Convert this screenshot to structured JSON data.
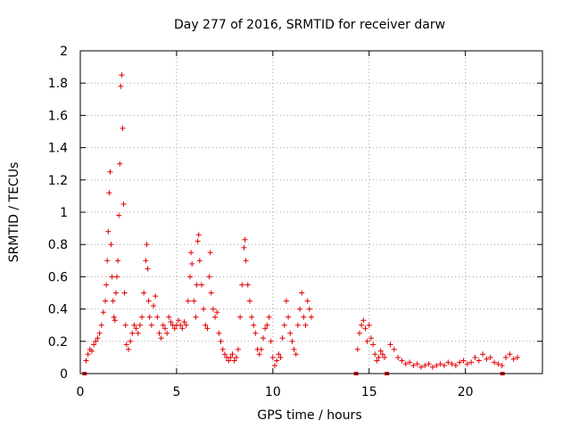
{
  "chart_data": {
    "type": "scatter",
    "title": "Day 277 of 2016, SRMTID for receiver darw",
    "xlabel": "GPS time / hours",
    "ylabel": "SRMTID / TECUs",
    "xlim": [
      0,
      24
    ],
    "ylim": [
      0,
      2
    ],
    "xticks": [
      0,
      5,
      10,
      15,
      20
    ],
    "xtick_labels": [
      "0",
      "5",
      "10",
      "15",
      "20"
    ],
    "yticks": [
      0,
      0.2,
      0.4,
      0.6,
      0.8,
      1,
      1.2,
      1.4,
      1.6,
      1.8,
      2
    ],
    "ytick_labels": [
      "0",
      "0.2",
      "0.4",
      "0.6",
      "0.8",
      "1",
      "1.2",
      "1.4",
      "1.6",
      "1.8",
      "2"
    ],
    "grid": true,
    "marker": "+",
    "color": "#e00000",
    "data_gaps": [
      0.2,
      14.3,
      15.9,
      21.9
    ],
    "series": [
      {
        "name": "SRMTID",
        "x": [
          0.3,
          0.4,
          0.5,
          0.6,
          0.7,
          0.8,
          0.9,
          1.0,
          1.1,
          1.2,
          1.3,
          1.35,
          1.4,
          1.45,
          1.5,
          1.55,
          1.6,
          1.65,
          1.7,
          1.75,
          1.8,
          1.85,
          1.9,
          1.95,
          2.0,
          2.05,
          2.1,
          2.15,
          2.2,
          2.25,
          2.3,
          2.35,
          2.4,
          2.5,
          2.6,
          2.7,
          2.8,
          2.9,
          3.0,
          3.1,
          3.2,
          3.3,
          3.4,
          3.45,
          3.5,
          3.55,
          3.6,
          3.7,
          3.8,
          3.9,
          4.0,
          4.1,
          4.2,
          4.3,
          4.4,
          4.5,
          4.6,
          4.7,
          4.8,
          4.9,
          5.0,
          5.1,
          5.2,
          5.3,
          5.4,
          5.5,
          5.6,
          5.7,
          5.75,
          5.8,
          5.9,
          6.0,
          6.05,
          6.1,
          6.15,
          6.2,
          6.3,
          6.4,
          6.5,
          6.6,
          6.7,
          6.75,
          6.8,
          6.9,
          7.0,
          7.1,
          7.2,
          7.3,
          7.4,
          7.5,
          7.6,
          7.7,
          7.8,
          7.9,
          8.0,
          8.1,
          8.2,
          8.3,
          8.4,
          8.5,
          8.55,
          8.6,
          8.7,
          8.8,
          8.9,
          9.0,
          9.1,
          9.2,
          9.3,
          9.4,
          9.5,
          9.6,
          9.7,
          9.8,
          9.9,
          10.0,
          10.1,
          10.2,
          10.3,
          10.4,
          10.5,
          10.6,
          10.7,
          10.8,
          10.9,
          11.0,
          11.1,
          11.2,
          11.3,
          11.4,
          11.5,
          11.6,
          11.7,
          11.8,
          11.9,
          12.0,
          14.4,
          14.5,
          14.6,
          14.7,
          14.8,
          14.9,
          15.0,
          15.1,
          15.2,
          15.3,
          15.4,
          15.5,
          15.6,
          15.7,
          15.8,
          16.1,
          16.3,
          16.5,
          16.7,
          16.9,
          17.1,
          17.3,
          17.5,
          17.7,
          17.9,
          18.1,
          18.3,
          18.5,
          18.7,
          18.9,
          19.1,
          19.3,
          19.5,
          19.7,
          19.9,
          20.1,
          20.3,
          20.5,
          20.7,
          20.9,
          21.1,
          21.3,
          21.5,
          21.7,
          21.9,
          22.1,
          22.3,
          22.5,
          22.7
        ],
        "y": [
          0.08,
          0.12,
          0.15,
          0.14,
          0.18,
          0.2,
          0.22,
          0.25,
          0.3,
          0.38,
          0.45,
          0.55,
          0.7,
          0.88,
          1.12,
          1.25,
          0.8,
          0.6,
          0.45,
          0.35,
          0.33,
          0.5,
          0.6,
          0.7,
          0.98,
          1.3,
          1.78,
          1.85,
          1.52,
          1.05,
          0.5,
          0.3,
          0.18,
          0.15,
          0.2,
          0.25,
          0.3,
          0.28,
          0.25,
          0.3,
          0.35,
          0.5,
          0.7,
          0.8,
          0.65,
          0.45,
          0.35,
          0.3,
          0.42,
          0.48,
          0.35,
          0.25,
          0.22,
          0.3,
          0.28,
          0.25,
          0.35,
          0.32,
          0.3,
          0.28,
          0.3,
          0.33,
          0.3,
          0.28,
          0.32,
          0.3,
          0.45,
          0.6,
          0.75,
          0.68,
          0.45,
          0.35,
          0.55,
          0.82,
          0.86,
          0.7,
          0.55,
          0.4,
          0.3,
          0.28,
          0.6,
          0.75,
          0.5,
          0.4,
          0.35,
          0.38,
          0.25,
          0.2,
          0.15,
          0.12,
          0.1,
          0.08,
          0.1,
          0.12,
          0.08,
          0.1,
          0.15,
          0.35,
          0.55,
          0.78,
          0.83,
          0.7,
          0.55,
          0.45,
          0.35,
          0.3,
          0.25,
          0.15,
          0.12,
          0.15,
          0.22,
          0.28,
          0.3,
          0.35,
          0.2,
          0.1,
          0.05,
          0.08,
          0.12,
          0.1,
          0.22,
          0.3,
          0.45,
          0.35,
          0.25,
          0.2,
          0.15,
          0.12,
          0.3,
          0.4,
          0.5,
          0.35,
          0.3,
          0.45,
          0.4,
          0.35,
          0.15,
          0.25,
          0.3,
          0.33,
          0.28,
          0.2,
          0.3,
          0.22,
          0.18,
          0.12,
          0.08,
          0.1,
          0.14,
          0.12,
          0.1,
          0.18,
          0.15,
          0.1,
          0.08,
          0.06,
          0.07,
          0.05,
          0.06,
          0.04,
          0.05,
          0.06,
          0.04,
          0.05,
          0.06,
          0.05,
          0.07,
          0.06,
          0.05,
          0.07,
          0.08,
          0.06,
          0.07,
          0.1,
          0.08,
          0.12,
          0.09,
          0.1,
          0.07,
          0.06,
          0.05,
          0.1,
          0.12,
          0.09,
          0.1
        ]
      }
    ]
  }
}
